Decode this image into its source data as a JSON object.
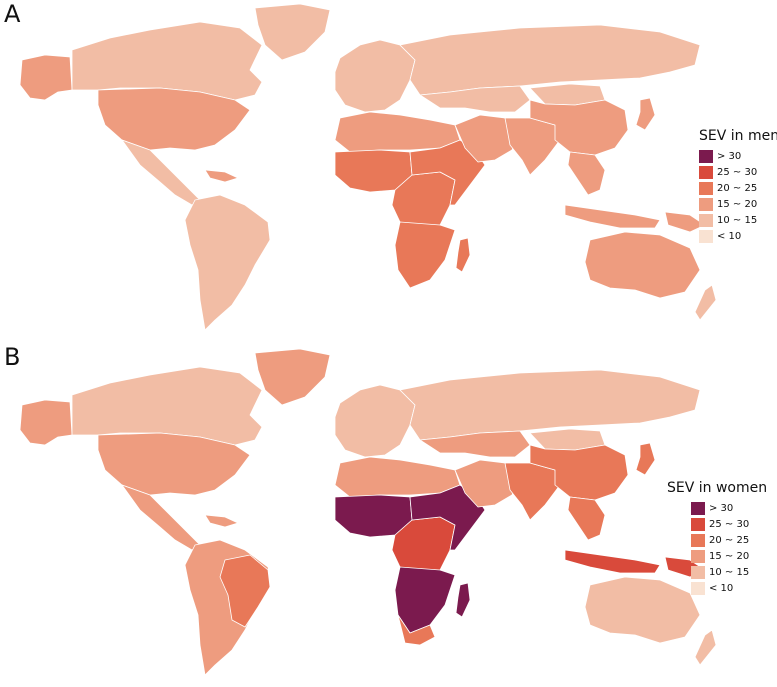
{
  "panel_a": {
    "letter": "A",
    "legend_title": "SEV in men",
    "regions": {
      "north_america": "10 ~ 15",
      "greenland": "10 ~ 15",
      "alaska": "15 ~ 20",
      "usa": "15 ~ 20",
      "central_america": "10 ~ 15",
      "caribbean": "15 ~ 20",
      "south_america": "10 ~ 15",
      "europe": "10 ~ 15",
      "russia": "10 ~ 15",
      "north_africa": "15 ~ 20",
      "west_africa": "20 ~ 25",
      "central_africa": "20 ~ 25",
      "east_africa": "20 ~ 25",
      "southern_africa": "20 ~ 25",
      "madagascar": "20 ~ 25",
      "middle_east": "15 ~ 20",
      "central_asia": "10 ~ 15",
      "south_asia": "15 ~ 20",
      "china": "15 ~ 20",
      "mongolia": "10 ~ 15",
      "japan": "15 ~ 20",
      "southeast_asia": "15 ~ 20",
      "indonesia": "15 ~ 20",
      "png": "15 ~ 20",
      "australia": "15 ~ 20",
      "new_zealand": "10 ~ 15"
    }
  },
  "panel_b": {
    "letter": "B",
    "legend_title": "SEV in women",
    "regions": {
      "north_america": "10 ~ 15",
      "greenland": "15 ~ 20",
      "alaska": "15 ~ 20",
      "usa": "15 ~ 20",
      "central_america": "15 ~ 20",
      "caribbean": "15 ~ 20",
      "south_america": "15 ~ 20",
      "brazil": "20 ~ 25",
      "europe": "10 ~ 15",
      "russia": "10 ~ 15",
      "north_africa": "15 ~ 20",
      "west_africa": "> 30",
      "central_africa": "25 ~ 30",
      "east_africa": "> 30",
      "southern_africa": "> 30",
      "south_africa": "20 ~ 25",
      "madagascar": "> 30",
      "middle_east": "15 ~ 20",
      "central_asia": "15 ~ 20",
      "south_asia": "20 ~ 25",
      "china": "20 ~ 25",
      "mongolia": "10 ~ 15",
      "japan": "20 ~ 25",
      "southeast_asia": "20 ~ 25",
      "indonesia": "25 ~ 30",
      "png": "25 ~ 30",
      "australia": "10 ~ 15",
      "new_zealand": "10 ~ 15"
    }
  },
  "legend_classes": [
    {
      "label": "> 30",
      "color": "#7b1a4e"
    },
    {
      "label": "25 ~ 30",
      "color": "#d94a3b"
    },
    {
      "label": "20 ~ 25",
      "color": "#e87858"
    },
    {
      "label": "15 ~ 20",
      "color": "#ee9c7f"
    },
    {
      "label": "10 ~ 15",
      "color": "#f2bda5"
    },
    {
      "label": "< 10",
      "color": "#f9e2d2"
    }
  ]
}
